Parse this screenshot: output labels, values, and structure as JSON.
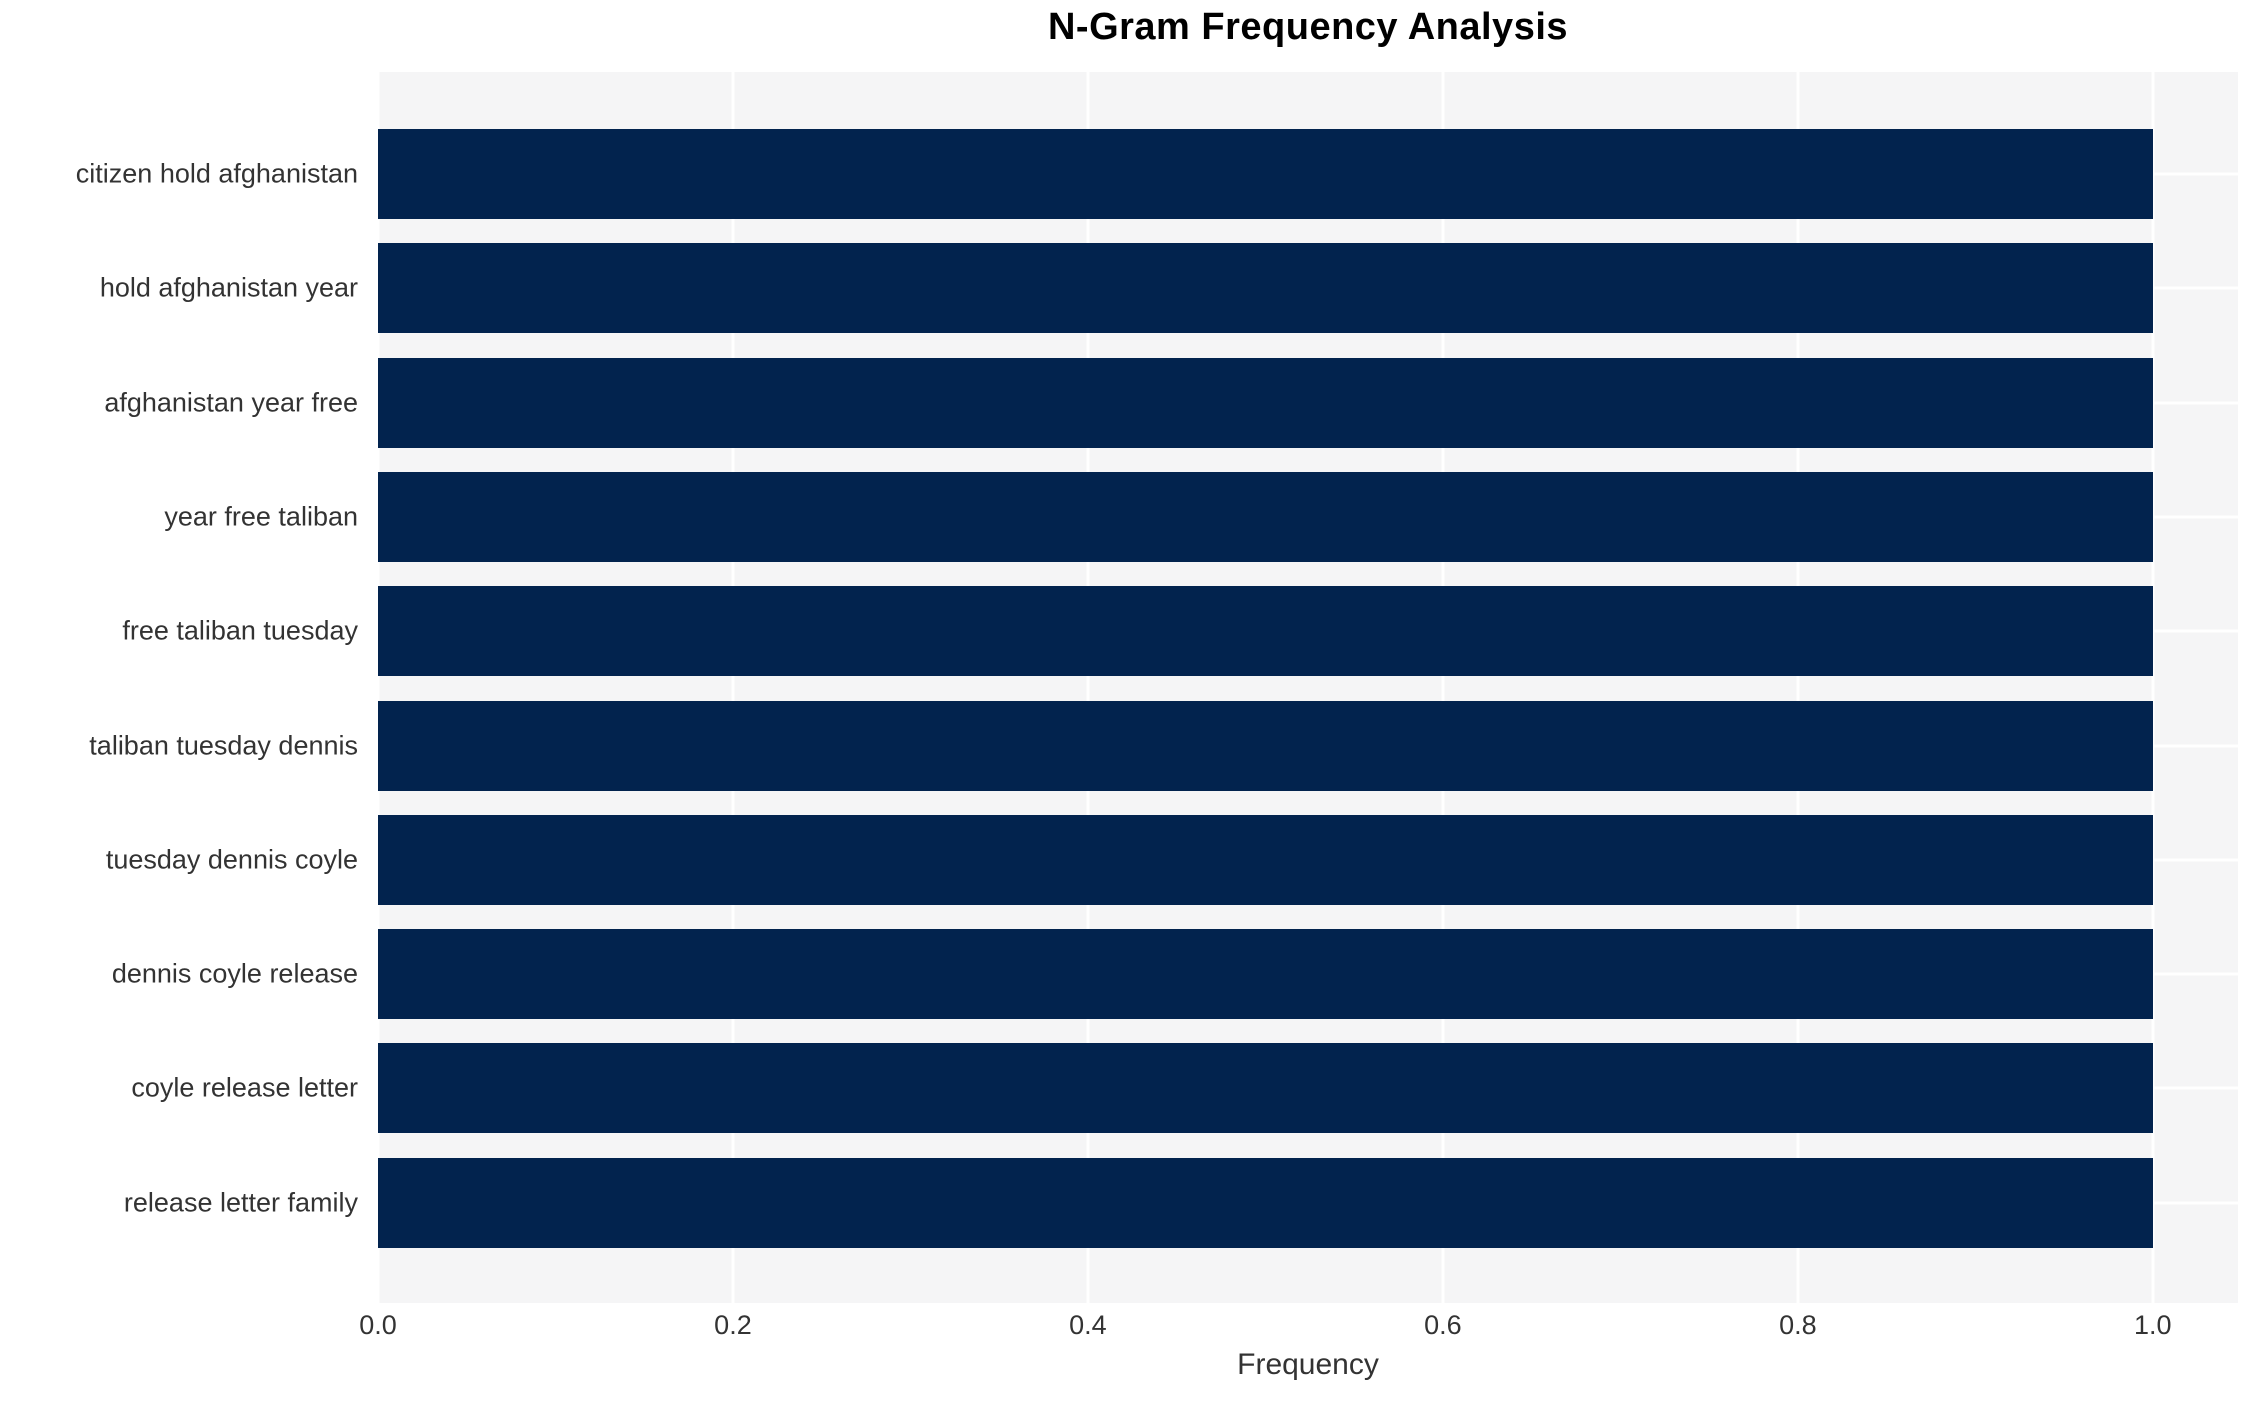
{
  "chart_data": {
    "type": "bar",
    "orientation": "horizontal",
    "title": "N-Gram Frequency Analysis",
    "xlabel": "Frequency",
    "ylabel": "",
    "categories": [
      "citizen hold afghanistan",
      "hold afghanistan year",
      "afghanistan year free",
      "year free taliban",
      "free taliban tuesday",
      "taliban tuesday dennis",
      "tuesday dennis coyle",
      "dennis coyle release",
      "coyle release letter",
      "release letter family"
    ],
    "values": [
      1.0,
      1.0,
      1.0,
      1.0,
      1.0,
      1.0,
      1.0,
      1.0,
      1.0,
      1.0
    ],
    "xticks": [
      0.0,
      0.2,
      0.4,
      0.6,
      0.8,
      1.0
    ],
    "xtick_labels": [
      "0.0",
      "0.2",
      "0.4",
      "0.6",
      "0.8",
      "1.0"
    ],
    "xlim": [
      0.0,
      1.048
    ],
    "grid": true,
    "legend": "none",
    "colors": {
      "bar": "#02234e",
      "plot_background": "#f5f5f6",
      "gridline": "#ffffff",
      "tick_text": "#333333",
      "title_text": "#000000",
      "page_background": "#ffffff"
    }
  }
}
